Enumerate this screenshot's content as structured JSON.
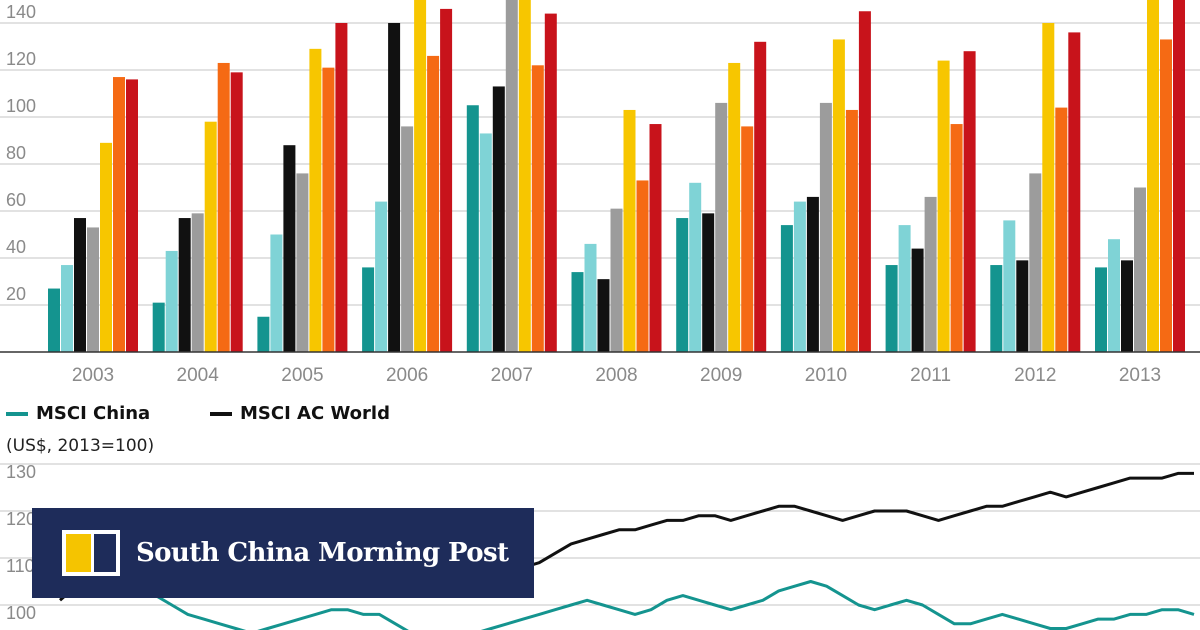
{
  "chart_data": [
    {
      "type": "bar",
      "categories": [
        "2003",
        "2004",
        "2005",
        "2006",
        "2007",
        "2008",
        "2009",
        "2010",
        "2011",
        "2012",
        "2013"
      ],
      "ylim": [
        0,
        150
      ],
      "yticks": [
        20,
        40,
        60,
        80,
        100,
        120,
        140
      ],
      "series": [
        {
          "color": "#14948f",
          "values": [
            27,
            21,
            15,
            36,
            105,
            34,
            57,
            54,
            37,
            37,
            36
          ]
        },
        {
          "color": "#7fd3d6",
          "values": [
            37,
            43,
            50,
            64,
            93,
            46,
            72,
            64,
            54,
            56,
            48
          ]
        },
        {
          "color": "#111111",
          "values": [
            57,
            57,
            88,
            140,
            113,
            31,
            59,
            66,
            44,
            39,
            39
          ]
        },
        {
          "color": "#9c9c9c",
          "values": [
            53,
            59,
            76,
            96,
            155,
            61,
            106,
            106,
            66,
            76,
            70
          ]
        },
        {
          "color": "#f7c600",
          "values": [
            89,
            98,
            129,
            155,
            155,
            103,
            123,
            133,
            124,
            140,
            150
          ]
        },
        {
          "color": "#f56a14",
          "values": [
            117,
            123,
            121,
            126,
            122,
            73,
            96,
            103,
            97,
            104,
            133
          ]
        },
        {
          "color": "#c8131b",
          "values": [
            116,
            119,
            140,
            146,
            144,
            97,
            132,
            145,
            128,
            136,
            155
          ]
        }
      ]
    },
    {
      "type": "line",
      "units_label": "(US$, 2013=100)",
      "ylim": [
        97,
        133
      ],
      "yticks": [
        100,
        110,
        120,
        130
      ],
      "series": [
        {
          "name": "MSCI China",
          "color": "#14948f",
          "values": [
            104,
            105,
            104,
            103,
            103,
            104,
            102,
            100,
            98,
            97,
            96,
            95,
            94,
            95,
            96,
            97,
            98,
            99,
            99,
            98,
            98,
            96,
            94,
            92,
            92,
            93,
            94,
            95,
            96,
            97,
            98,
            99,
            100,
            101,
            100,
            99,
            98,
            99,
            101,
            102,
            101,
            100,
            99,
            100,
            101,
            103,
            104,
            105,
            104,
            102,
            100,
            99,
            100,
            101,
            100,
            98,
            96,
            96,
            97,
            98,
            97,
            96,
            95,
            95,
            96,
            97,
            97,
            98,
            98,
            99,
            99,
            98
          ]
        },
        {
          "name": "MSCI AC World",
          "color": "#111111",
          "values": [
            101,
            104,
            105,
            106,
            107,
            107,
            108,
            108,
            109,
            109,
            110,
            110,
            111,
            111,
            110,
            110,
            111,
            111,
            111,
            111,
            111,
            110,
            109,
            110,
            111,
            112,
            112,
            111,
            109,
            108,
            109,
            111,
            113,
            114,
            115,
            116,
            116,
            117,
            118,
            118,
            119,
            119,
            118,
            119,
            120,
            121,
            121,
            120,
            119,
            118,
            119,
            120,
            120,
            120,
            119,
            118,
            119,
            120,
            121,
            121,
            122,
            123,
            124,
            123,
            124,
            125,
            126,
            127,
            127,
            127,
            128,
            128
          ]
        }
      ]
    }
  ],
  "banner": {
    "brand": "South China Morning Post"
  }
}
